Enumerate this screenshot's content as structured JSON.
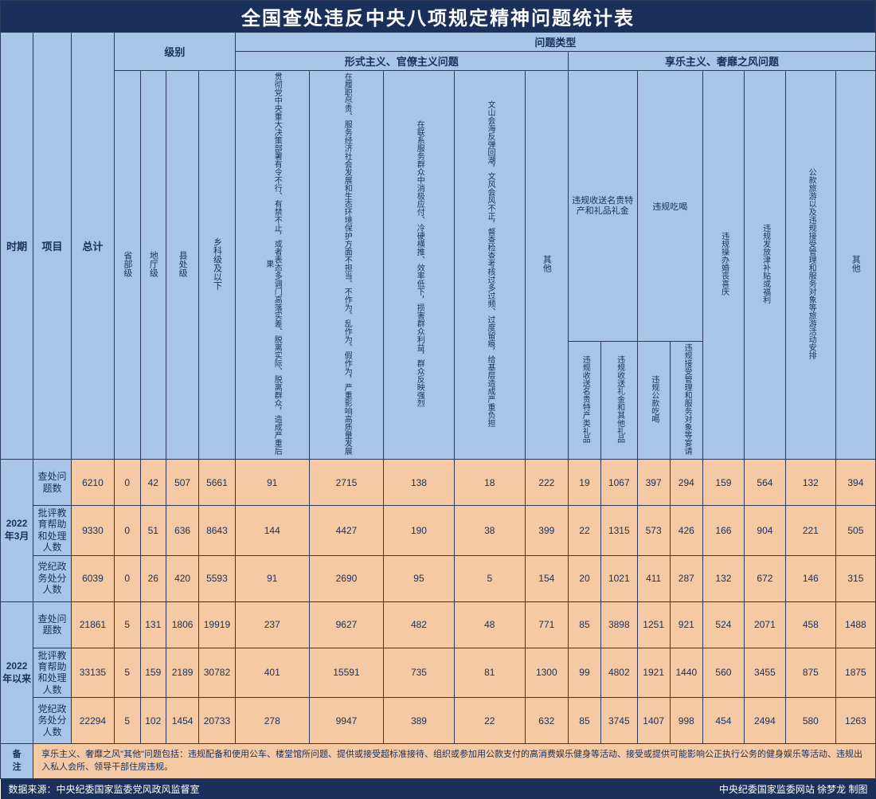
{
  "title": "全国查处违反中央八项规定精神问题统计表",
  "headers": {
    "period": "时期",
    "item": "项目",
    "total": "总计",
    "level": "级别",
    "levels": [
      "省部级",
      "地厅级",
      "县处级",
      "乡科级及以下"
    ],
    "problem_type": "问题类型",
    "cat1": "形式主义、官僚主义问题",
    "cat2": "享乐主义、奢靡之风问题",
    "gift_group": "违规收送名贵特产和礼品礼金",
    "eat_group": "违规吃喝",
    "cat1_cols": [
      "贯彻党中央重大决策部署有令不行、有禁不止，或者表态多调门高落实差、脱离实际、脱离群众，造成严重后果",
      "在履职尽责、服务经济社会发展和生态环境保护方面不担当、不作为、乱作为、假作为，严重影响高质量发展",
      "在联系服务群众中消极应付、冷硬横推、效率低下，损害群众利益，群众反映强烈",
      "文山会海反弹回潮，文风会风不正，督查检查考核过多过频、过度留痕，给基层造成严重负担",
      "其他"
    ],
    "gift_cols": [
      "违规收送名贵特产类礼品",
      "违规收送礼金和其他礼品"
    ],
    "eat_cols": [
      "违规公款吃喝",
      "违规接受管理和服务对象等宴请"
    ],
    "cat2_tail": [
      "违规操办婚丧喜庆",
      "违规发放津补贴或福利",
      "公款旅游以及违规接受管理和服务对象等旅游活动安排",
      "其他"
    ]
  },
  "periods": [
    {
      "label": "2022年3月",
      "rows": [
        {
          "item": "查处问题数",
          "total": 6210,
          "levels": [
            0,
            42,
            507,
            5661
          ],
          "c1": [
            91,
            2715,
            138,
            18,
            222
          ],
          "g": [
            19,
            1067
          ],
          "e": [
            397,
            294
          ],
          "t": [
            159,
            564,
            132,
            394
          ]
        },
        {
          "item": "批评教育帮助和处理人数",
          "total": 9330,
          "levels": [
            0,
            51,
            636,
            8643
          ],
          "c1": [
            144,
            4427,
            190,
            38,
            399
          ],
          "g": [
            22,
            1315
          ],
          "e": [
            573,
            426
          ],
          "t": [
            166,
            904,
            221,
            505
          ]
        },
        {
          "item": "党纪政务处分人数",
          "total": 6039,
          "levels": [
            0,
            26,
            420,
            5593
          ],
          "c1": [
            91,
            2690,
            95,
            5,
            154
          ],
          "g": [
            20,
            1021
          ],
          "e": [
            411,
            287
          ],
          "t": [
            132,
            672,
            146,
            315
          ]
        }
      ]
    },
    {
      "label": "2022年以来",
      "rows": [
        {
          "item": "查处问题数",
          "total": 21861,
          "levels": [
            5,
            131,
            1806,
            19919
          ],
          "c1": [
            237,
            9627,
            482,
            48,
            771
          ],
          "g": [
            85,
            3898
          ],
          "e": [
            1251,
            921
          ],
          "t": [
            524,
            2071,
            458,
            1488
          ]
        },
        {
          "item": "批评教育帮助和处理人数",
          "total": 33135,
          "levels": [
            5,
            159,
            2189,
            30782
          ],
          "c1": [
            401,
            15591,
            735,
            81,
            1300
          ],
          "g": [
            99,
            4802
          ],
          "e": [
            1921,
            1440
          ],
          "t": [
            560,
            3455,
            875,
            1875
          ]
        },
        {
          "item": "党纪政务处分人数",
          "total": 22294,
          "levels": [
            5,
            102,
            1454,
            20733
          ],
          "c1": [
            278,
            9947,
            389,
            22,
            632
          ],
          "g": [
            85,
            3745
          ],
          "e": [
            1407,
            998
          ],
          "t": [
            454,
            2494,
            580,
            1263
          ]
        }
      ]
    }
  ],
  "note_label": "备注",
  "note": "享乐主义、奢靡之风\"其他\"问题包括：违规配备和使用公车、楼堂馆所问题、提供或接受超标准接待、组织或参加用公款支付的高消费娱乐健身等活动、接受或提供可能影响公正执行公务的健身娱乐等活动、违规出入私人会所、领导干部住房违规。",
  "footer_left": "数据来源：中央纪委国家监委党风政风监督室",
  "footer_right": "中央纪委国家监委网站 徐梦龙 制图",
  "colors": {
    "title_bg": "#1a2f5a",
    "header_bg": "#a8c5e8",
    "data_bg": "#f5c9a3",
    "border": "#2a3a5a",
    "text": "#1a2f5a"
  }
}
